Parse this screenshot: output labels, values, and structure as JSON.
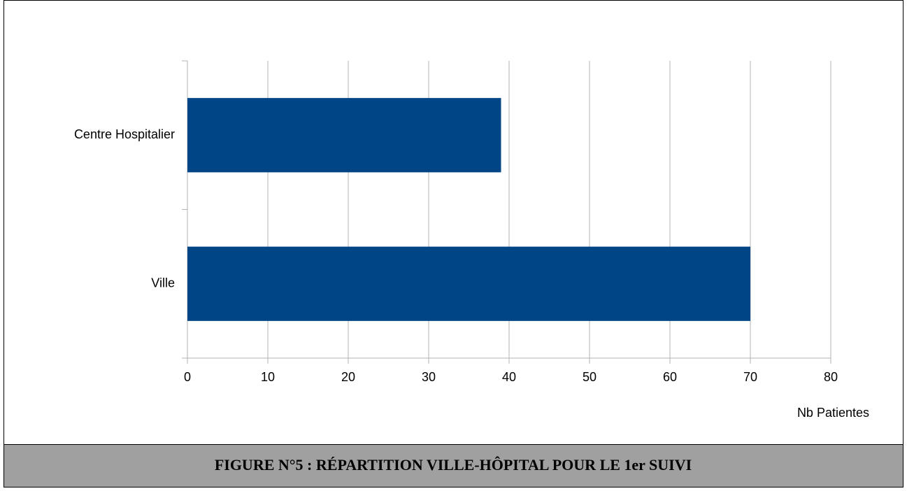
{
  "chart_data": {
    "type": "hbar",
    "title": "FIGURE N°5 : RÉPARTITION VILLE-HÔPITAL POUR LE 1er SUIVI",
    "x_label": "Nb Patientes",
    "categories": [
      "Centre Hospitalier",
      "Ville"
    ],
    "values": [
      39,
      70
    ],
    "color": "#004586",
    "xlim": [
      0,
      80
    ],
    "xticks": [
      0,
      10,
      20,
      30,
      40,
      50,
      60,
      70,
      80
    ],
    "grid": true
  }
}
